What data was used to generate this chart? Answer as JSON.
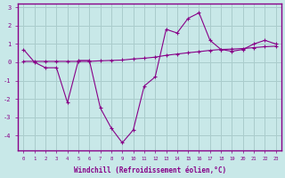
{
  "xlabel": "Windchill (Refroidissement éolien,°C)",
  "x_values": [
    0,
    1,
    2,
    3,
    4,
    5,
    6,
    7,
    8,
    9,
    10,
    11,
    12,
    13,
    14,
    15,
    16,
    17,
    18,
    19,
    20,
    21,
    22,
    23
  ],
  "line1_y": [
    0.7,
    0.0,
    -0.3,
    -0.3,
    -2.2,
    0.1,
    0.1,
    -2.5,
    -3.6,
    -4.4,
    -3.7,
    -1.3,
    -0.8,
    1.8,
    1.6,
    2.4,
    2.7,
    1.2,
    0.7,
    0.6,
    0.7,
    1.0,
    1.2,
    1.0
  ],
  "line2_y": [
    0.05,
    0.05,
    0.05,
    0.05,
    0.05,
    0.05,
    0.05,
    0.08,
    0.1,
    0.12,
    0.18,
    0.22,
    0.28,
    0.38,
    0.45,
    0.52,
    0.58,
    0.65,
    0.7,
    0.72,
    0.75,
    0.8,
    0.85,
    0.88
  ],
  "line_color": "#880088",
  "bg_color": "#c8e8e8",
  "grid_color": "#aacccc",
  "spine_color": "#880088",
  "ylim": [
    -4.8,
    3.2
  ],
  "yticks": [
    -4,
    -3,
    -2,
    -1,
    0,
    1,
    2,
    3
  ],
  "xlim": [
    -0.5,
    23.5
  ]
}
